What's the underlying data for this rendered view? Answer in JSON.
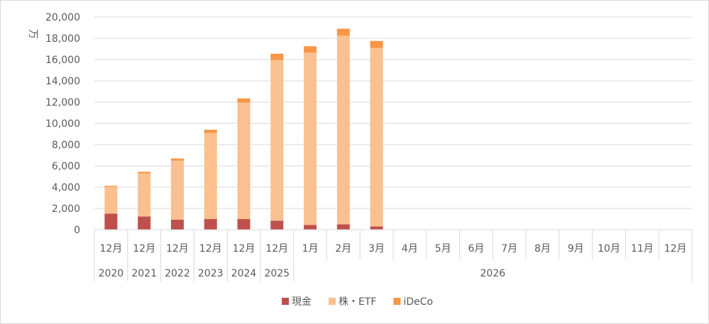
{
  "chart_data": {
    "type": "bar",
    "stacked": true,
    "ylabel": "万",
    "ylim": [
      0,
      20000
    ],
    "yticks": [
      "0",
      "2,000",
      "4,000",
      "6,000",
      "8,000",
      "10,000",
      "12,000",
      "14,000",
      "16,000",
      "18,000",
      "20,000"
    ],
    "categories": [
      "12月",
      "12月",
      "12月",
      "12月",
      "12月",
      "12月",
      "1月",
      "2月",
      "3月",
      "4月",
      "5月",
      "6月",
      "7月",
      "8月",
      "9月",
      "10月",
      "11月",
      "12月"
    ],
    "year_groups": [
      {
        "label": "2020",
        "span": 1
      },
      {
        "label": "2021",
        "span": 1
      },
      {
        "label": "2022",
        "span": 1
      },
      {
        "label": "2023",
        "span": 1
      },
      {
        "label": "2024",
        "span": 1
      },
      {
        "label": "2025",
        "span": 1
      },
      {
        "label": "2026",
        "span": 12
      }
    ],
    "series": [
      {
        "name": "現金",
        "color": "#c0504d",
        "values": [
          1500,
          1250,
          950,
          1000,
          1000,
          850,
          450,
          500,
          300,
          null,
          null,
          null,
          null,
          null,
          null,
          null,
          null,
          null
        ]
      },
      {
        "name": "株・ETF",
        "color": "#fac090",
        "values": [
          2550,
          4050,
          5550,
          8100,
          10950,
          15100,
          16200,
          17750,
          16800,
          null,
          null,
          null,
          null,
          null,
          null,
          null,
          null,
          null
        ]
      },
      {
        "name": "iDeCo",
        "color": "#f79646",
        "values": [
          80,
          150,
          200,
          300,
          400,
          600,
          600,
          650,
          650,
          null,
          null,
          null,
          null,
          null,
          null,
          null,
          null,
          null
        ]
      }
    ],
    "grid": true,
    "legend_position": "bottom"
  }
}
